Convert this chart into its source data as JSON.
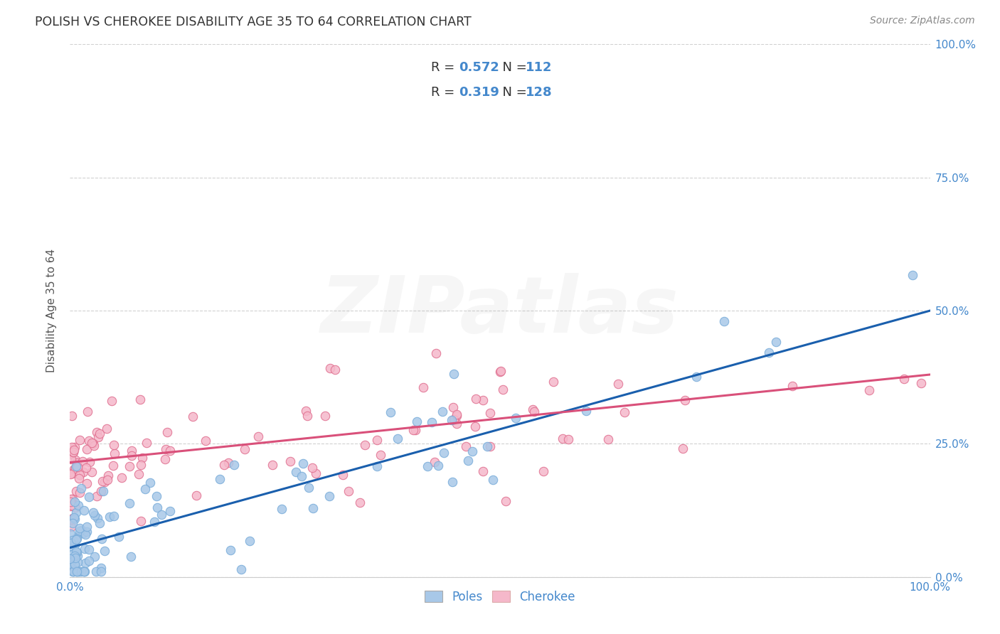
{
  "title": "POLISH VS CHEROKEE DISABILITY AGE 35 TO 64 CORRELATION CHART",
  "source_text": "Source: ZipAtlas.com",
  "ylabel": "Disability Age 35 to 64",
  "xlabel": "",
  "xlim": [
    0.0,
    1.0
  ],
  "ylim": [
    0.0,
    1.0
  ],
  "xtick_labels": [
    "0.0%",
    "100.0%"
  ],
  "ytick_labels": [
    "0.0%",
    "25.0%",
    "50.0%",
    "75.0%",
    "100.0%"
  ],
  "ytick_positions": [
    0.0,
    0.25,
    0.5,
    0.75,
    1.0
  ],
  "poles_color": "#a8c8e8",
  "poles_edge_color": "#7aadda",
  "cherokee_color": "#f5b8ca",
  "cherokee_edge_color": "#e07090",
  "poles_line_color": "#1a5fad",
  "cherokee_line_color": "#d9507a",
  "poles_R": 0.572,
  "poles_N": 112,
  "cherokee_R": 0.319,
  "cherokee_N": 128,
  "poles_intercept": 0.055,
  "poles_slope": 0.445,
  "cherokee_intercept": 0.215,
  "cherokee_slope": 0.165,
  "watermark_text": "ZIPatlas",
  "watermark_alpha": 0.1,
  "background_color": "#ffffff",
  "grid_color": "#cccccc",
  "title_color": "#333333",
  "axis_label_color": "#555555",
  "tick_label_color": "#4488cc",
  "legend_label_color": "#333333"
}
